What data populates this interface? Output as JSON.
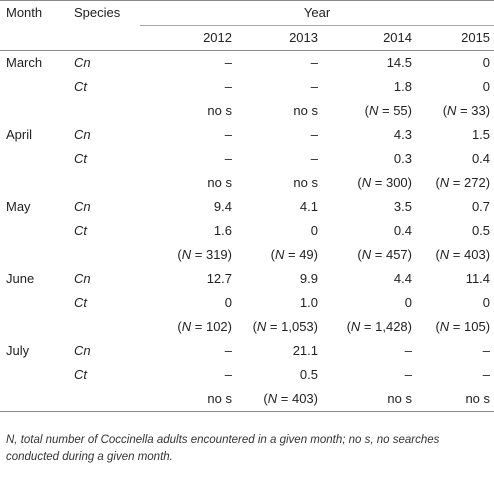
{
  "headers": {
    "month": "Month",
    "species": "Species",
    "year": "Year",
    "years": [
      "2012",
      "2013",
      "2014",
      "2015"
    ]
  },
  "rows": [
    {
      "month": "March",
      "species": "Cn",
      "values": [
        "–",
        "–",
        "14.5",
        "0"
      ]
    },
    {
      "month": "",
      "species": "Ct",
      "values": [
        "–",
        "–",
        "1.8",
        "0"
      ]
    },
    {
      "month": "",
      "species": "",
      "values": [
        "no s",
        "no s",
        "(N = 55)",
        "(N = 33)"
      ]
    },
    {
      "month": "April",
      "species": "Cn",
      "values": [
        "–",
        "–",
        "4.3",
        "1.5"
      ]
    },
    {
      "month": "",
      "species": "Ct",
      "values": [
        "–",
        "–",
        "0.3",
        "0.4"
      ]
    },
    {
      "month": "",
      "species": "",
      "values": [
        "no s",
        "no s",
        "(N = 300)",
        "(N = 272)"
      ]
    },
    {
      "month": "May",
      "species": "Cn",
      "values": [
        "9.4",
        "4.1",
        "3.5",
        "0.7"
      ]
    },
    {
      "month": "",
      "species": "Ct",
      "values": [
        "1.6",
        "0",
        "0.4",
        "0.5"
      ]
    },
    {
      "month": "",
      "species": "",
      "values": [
        "(N = 319)",
        "(N = 49)",
        "(N = 457)",
        "(N = 403)"
      ]
    },
    {
      "month": "June",
      "species": "Cn",
      "values": [
        "12.7",
        "9.9",
        "4.4",
        "11.4"
      ]
    },
    {
      "month": "",
      "species": "Ct",
      "values": [
        "0",
        "1.0",
        "0",
        "0"
      ]
    },
    {
      "month": "",
      "species": "",
      "values": [
        "(N = 102)",
        "(N = 1,053)",
        "(N = 1,428)",
        "(N = 105)"
      ]
    },
    {
      "month": "July",
      "species": "Cn",
      "values": [
        "–",
        "21.1",
        "–",
        "–"
      ]
    },
    {
      "month": "",
      "species": "Ct",
      "values": [
        "–",
        "0.5",
        "–",
        "–"
      ]
    },
    {
      "month": "",
      "species": "",
      "values": [
        "no s",
        "(N = 403)",
        "no s",
        "no s"
      ]
    }
  ],
  "footnote": {
    "line1": "N, total number of Coccinella adults encountered in a given month; no s, no searches",
    "line2": "conducted during a given month."
  }
}
